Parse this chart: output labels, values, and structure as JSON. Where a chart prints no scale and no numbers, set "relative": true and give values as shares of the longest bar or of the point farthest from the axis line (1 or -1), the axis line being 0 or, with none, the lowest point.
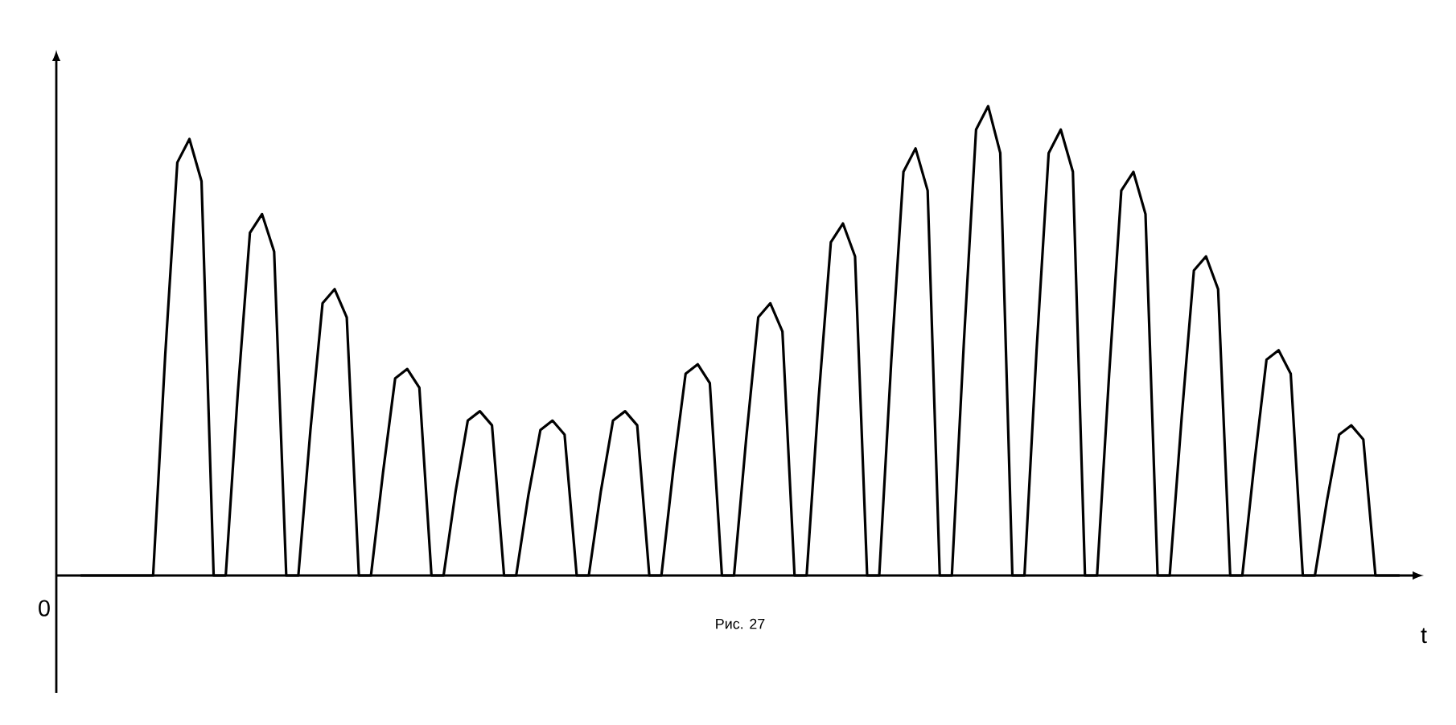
{
  "chart_data": {
    "type": "line",
    "relative": true,
    "xlabel": "t",
    "annotations": [
      "0",
      "Рис. 27"
    ],
    "categories": [
      null,
      null,
      null,
      null,
      null,
      null,
      null,
      null,
      null,
      null,
      null,
      null,
      null,
      null,
      null,
      null,
      null,
      null,
      null,
      null,
      null,
      null,
      null,
      null,
      null,
      null,
      null,
      null,
      null,
      null,
      null,
      null,
      null,
      null,
      null,
      null,
      null,
      null,
      null,
      null,
      null,
      null,
      null,
      null,
      null,
      null,
      null,
      null,
      null,
      null,
      null,
      null,
      null,
      null,
      null,
      null,
      null,
      null,
      null,
      null,
      null,
      null,
      null,
      null,
      null,
      null,
      null,
      null,
      null,
      null,
      null,
      null,
      null,
      null,
      null,
      null,
      null,
      null,
      null,
      null,
      null,
      null,
      null,
      null,
      null,
      null,
      null,
      null,
      null,
      null,
      null,
      null,
      null,
      null,
      null,
      null,
      null,
      null,
      null,
      null,
      null,
      null,
      null,
      null,
      null,
      null,
      null,
      null,
      null,
      null
    ],
    "series": [
      {
        "color": "#000000",
        "values": [
          0,
          0,
          0,
          0,
          0,
          0,
          0,
          0.47,
          0.88,
          0.93,
          0.84,
          0,
          0,
          0.39,
          0.73,
          0.77,
          0.69,
          0,
          0,
          0.31,
          0.58,
          0.61,
          0.55,
          0,
          0,
          0.22,
          0.42,
          0.44,
          0.4,
          0,
          0,
          0.18,
          0.33,
          0.35,
          0.32,
          0,
          0,
          0.17,
          0.31,
          0.33,
          0.3,
          0,
          0,
          0.18,
          0.33,
          0.35,
          0.32,
          0,
          0,
          0.23,
          0.43,
          0.45,
          0.41,
          0,
          0,
          0.29,
          0.55,
          0.58,
          0.52,
          0,
          0,
          0.38,
          0.71,
          0.75,
          0.68,
          0,
          0,
          0.46,
          0.86,
          0.91,
          0.82,
          0,
          0,
          0.5,
          0.95,
          1,
          0.9,
          0,
          0,
          0.48,
          0.9,
          0.95,
          0.86,
          0,
          0,
          0.43,
          0.82,
          0.86,
          0.77,
          0,
          0,
          0.34,
          0.65,
          0.68,
          0.61,
          0,
          0,
          0.24,
          0.46,
          0.48,
          0.43,
          0,
          0,
          0.16,
          0.3,
          0.32,
          0.29,
          0,
          0,
          0
        ]
      }
    ]
  }
}
